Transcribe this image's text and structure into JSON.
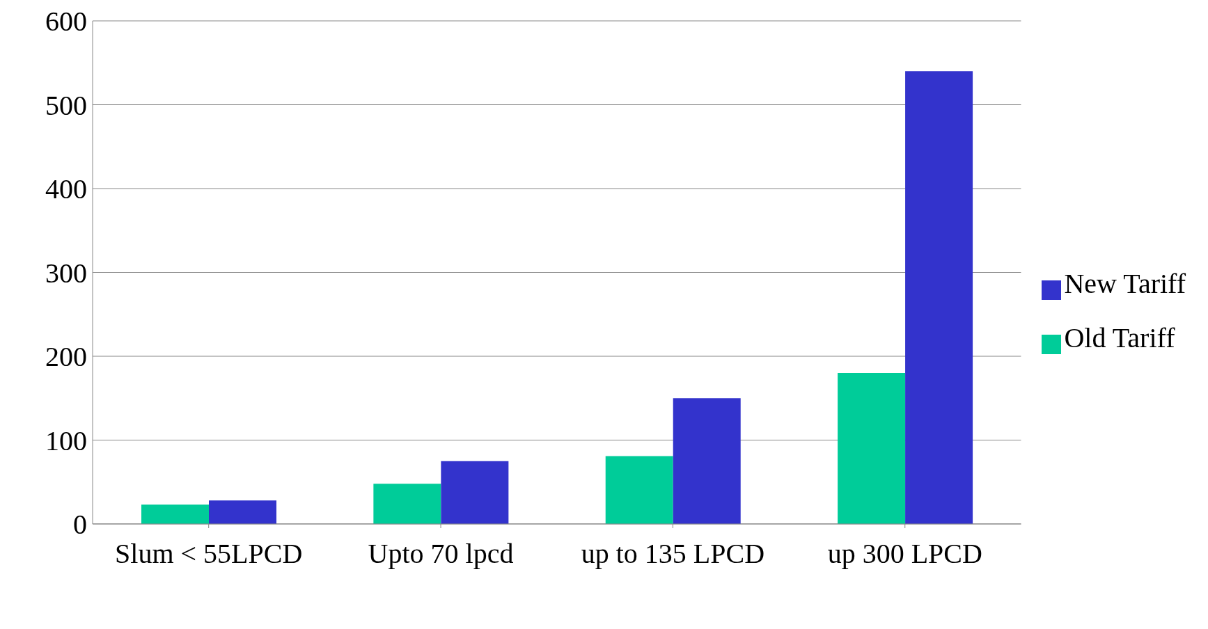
{
  "chart_data": {
    "type": "bar",
    "categories": [
      "Slum < 55LPCD",
      "Upto 70 lpcd",
      "up to 135 LPCD",
      "up 300 LPCD"
    ],
    "series": [
      {
        "name": "Old Tariff",
        "color": "#00cc99",
        "values": [
          23,
          48,
          81,
          180
        ]
      },
      {
        "name": "New Tariff",
        "color": "#3333cc",
        "values": [
          28,
          75,
          150,
          540
        ]
      }
    ],
    "ylim": [
      0,
      600
    ],
    "yticks": [
      0,
      100,
      200,
      300,
      400,
      500,
      600
    ],
    "grid": "y",
    "legend": "right"
  }
}
